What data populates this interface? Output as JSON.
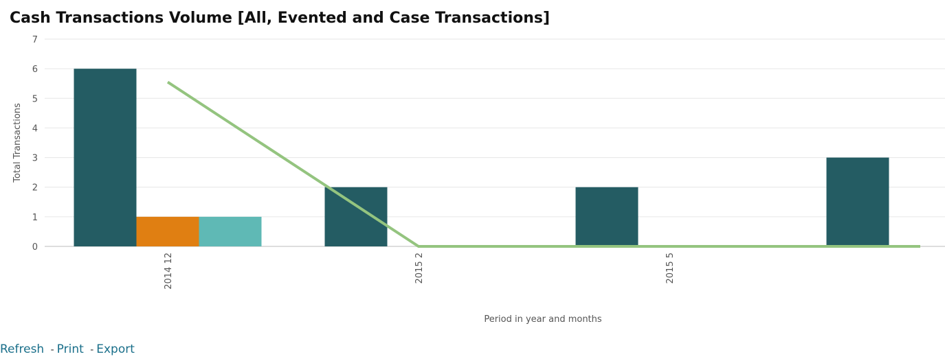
{
  "chart_data": {
    "type": "bar",
    "title": "Cash Transactions Volume [All, Evented and Case Transactions]",
    "xlabel": "Period in year and months",
    "ylabel": "Total Transactions",
    "ylim": [
      0,
      7
    ],
    "yticks": [
      0,
      1,
      2,
      3,
      4,
      5,
      6,
      7
    ],
    "grid": true,
    "categories": [
      "2014 12",
      "2015 2",
      "2015 5",
      ""
    ],
    "series": [
      {
        "type": "bar",
        "color": "#245c63",
        "values": [
          6,
          2,
          2,
          3
        ]
      },
      {
        "type": "bar",
        "color": "#e07f12",
        "values": [
          1,
          0,
          0,
          0
        ]
      },
      {
        "type": "bar",
        "color": "#5fb9b5",
        "values": [
          1,
          0,
          0,
          0
        ]
      },
      {
        "type": "line",
        "color": "#94c47f",
        "values": [
          5.55,
          0,
          0,
          0
        ]
      }
    ]
  },
  "links": {
    "refresh": "Refresh",
    "print": "Print",
    "export": "Export",
    "separator": "-"
  }
}
